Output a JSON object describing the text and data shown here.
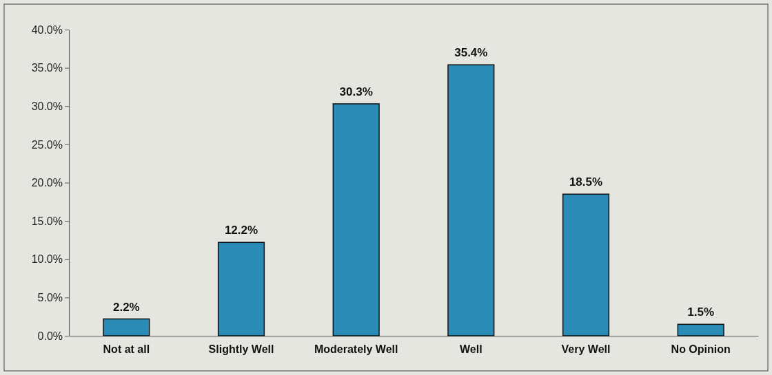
{
  "chart_data": {
    "type": "bar",
    "categories": [
      "Not at all",
      "Slightly Well",
      "Moderately Well",
      "Well",
      "Very Well",
      "No Opinion"
    ],
    "values": [
      2.2,
      12.2,
      30.3,
      35.4,
      18.5,
      1.5
    ],
    "value_labels": [
      "2.2%",
      "12.2%",
      "30.3%",
      "35.4%",
      "18.5%",
      "1.5%"
    ],
    "color": "#2a8cb6",
    "ylim": [
      0,
      40
    ],
    "yticks": [
      {
        "value": 0,
        "label": "0.0%"
      },
      {
        "value": 5,
        "label": "5.0%"
      },
      {
        "value": 10,
        "label": "10.0%"
      },
      {
        "value": 15,
        "label": "15.0%"
      },
      {
        "value": 20,
        "label": "20.0%"
      },
      {
        "value": 25,
        "label": "25.0%"
      },
      {
        "value": 30,
        "label": "30.0%"
      },
      {
        "value": 35,
        "label": "35.0%"
      },
      {
        "value": 40,
        "label": "40.0%"
      }
    ],
    "grid": false
  }
}
